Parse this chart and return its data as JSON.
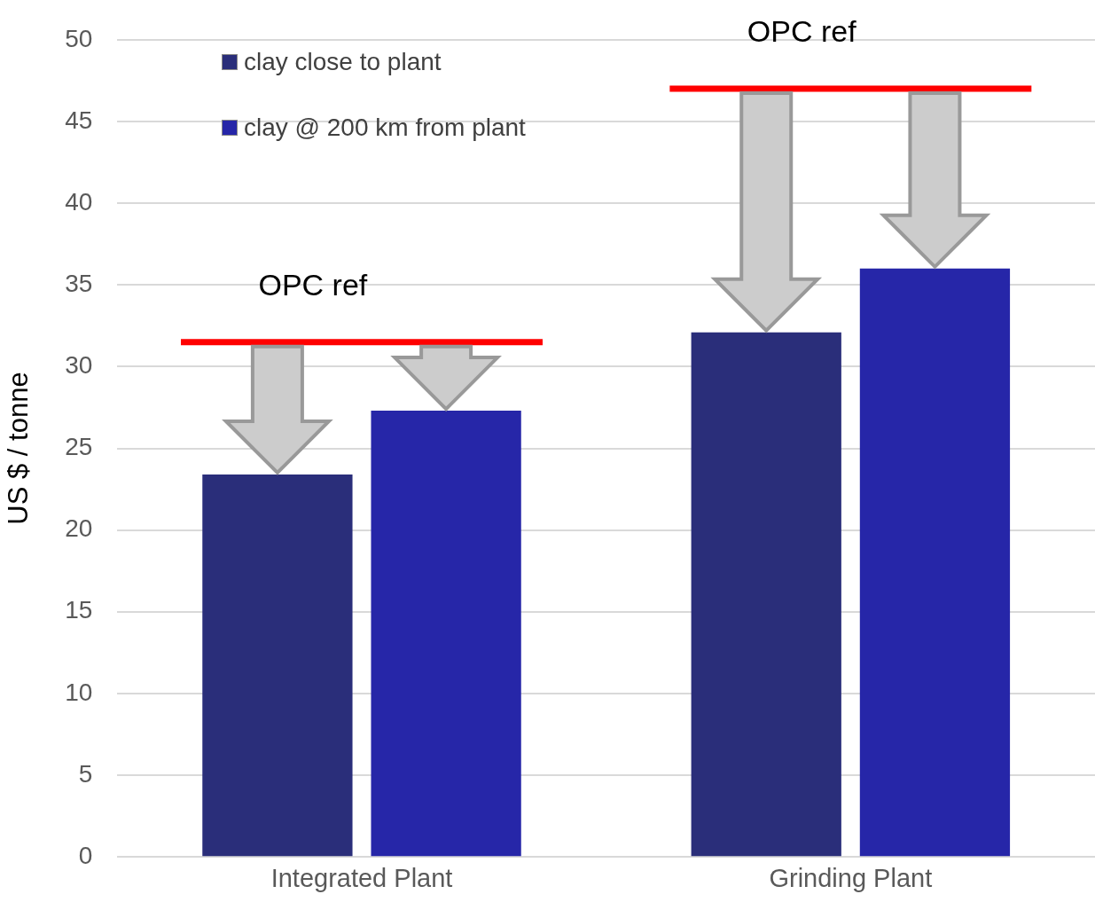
{
  "chart_data": {
    "type": "bar",
    "ylabel": "US $ / tonne",
    "categories": [
      "Integrated Plant",
      "Grinding Plant"
    ],
    "series": [
      {
        "name": "clay close to plant",
        "color": "#2a2e7a",
        "values": [
          23.4,
          32.1
        ]
      },
      {
        "name": "clay @ 200 km from plant",
        "color": "#2626a8",
        "values": [
          27.3,
          36.0
        ]
      }
    ],
    "ylim": [
      0,
      50
    ],
    "yticks": [
      0,
      5,
      10,
      15,
      20,
      25,
      30,
      35,
      40,
      45,
      50
    ],
    "grid": "y",
    "legend": "top left",
    "ref_lines": [
      {
        "axis": "y",
        "value": 31.5,
        "label": "OPC ref",
        "color": "#ff0000"
      },
      {
        "axis": "y",
        "value": 47.0,
        "label": "OPC ref",
        "color": "#ff0000"
      }
    ]
  }
}
